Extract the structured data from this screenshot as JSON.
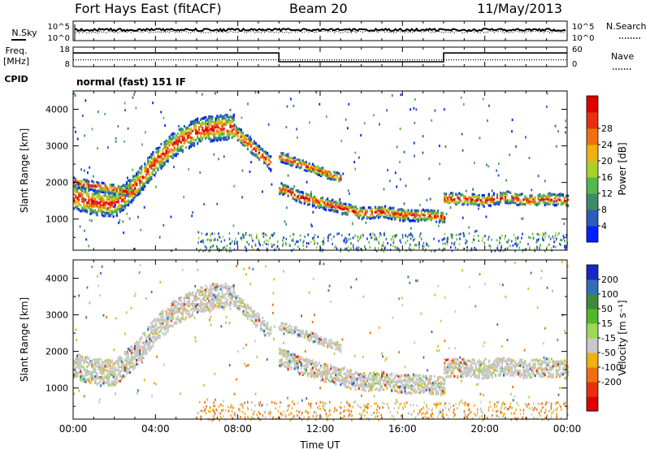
{
  "header": {
    "station": "Fort Hays East (fitACF)",
    "beam": "Beam 20",
    "date": "11/May/2013"
  },
  "left_labels": {
    "nsky": "N.Sky",
    "freq": "Freq.",
    "freq_unit": "[MHz]",
    "cpid": "CPID"
  },
  "right_labels": {
    "nsearch": "N.Search",
    "nave": "Nave"
  },
  "mode": "normal (fast) 151 IF",
  "chart_data": [
    {
      "id": "noise",
      "type": "line",
      "left_ticks": [
        "10^5",
        "10^0"
      ],
      "right_ticks": [
        "10^5",
        "10^0"
      ],
      "series": [
        {
          "name": "N.Sky",
          "style": "solid",
          "level": 0.55
        },
        {
          "name": "N.Search",
          "style": "dotted",
          "level": 0.45
        }
      ]
    },
    {
      "id": "freq",
      "type": "line",
      "left_ticks": [
        "18",
        "8"
      ],
      "right_ticks": [
        "60",
        "0"
      ],
      "ylim_left": [
        8,
        18
      ],
      "ylim_right": [
        0,
        60
      ],
      "series": [
        {
          "name": "Freq.",
          "style": "solid",
          "x": [
            0,
            10,
            10,
            18,
            18,
            24
          ],
          "y": [
            15,
            15,
            10.5,
            10.5,
            15,
            15
          ]
        },
        {
          "name": "Nave",
          "style": "dotted",
          "x": [
            0,
            24
          ],
          "y": [
            21,
            21
          ]
        }
      ]
    },
    {
      "id": "power",
      "type": "heatmap",
      "ylabel": "Slant Range [km]",
      "yticks": [
        "1000",
        "2000",
        "3000",
        "4000"
      ],
      "ylim": [
        150,
        4500
      ],
      "xlim": [
        0,
        24
      ],
      "colorbar": {
        "label": "Power [dB]",
        "ticks": [
          "4",
          "8",
          "12",
          "16",
          "20",
          "24",
          "28"
        ],
        "colors": [
          "#0020ff",
          "#2e5bb8",
          "#3f8a6a",
          "#52b84a",
          "#a8d02a",
          "#f0b010",
          "#f07010",
          "#e83010",
          "#e00000"
        ]
      },
      "bands": [
        {
          "x": [
            0,
            1,
            2,
            3,
            4,
            5,
            6,
            7,
            7.8
          ],
          "center": [
            1600,
            1450,
            1400,
            1900,
            2600,
            3100,
            3400,
            3500,
            3500
          ],
          "width": 700
        },
        {
          "x": [
            7.8,
            8.4,
            9,
            9.6
          ],
          "center": [
            3400,
            3100,
            2800,
            2500
          ],
          "width": 400
        },
        {
          "x": [
            10,
            11,
            12,
            13,
            14,
            15,
            16,
            17,
            18
          ],
          "center": [
            1850,
            1600,
            1450,
            1300,
            1150,
            1200,
            1100,
            1100,
            1050
          ],
          "width": 320
        },
        {
          "x": [
            18,
            19,
            20,
            21,
            22,
            23,
            24
          ],
          "center": [
            1550,
            1550,
            1500,
            1600,
            1500,
            1550,
            1500
          ],
          "width": 320
        },
        {
          "x": [
            10,
            11,
            12,
            13
          ],
          "center": [
            2700,
            2500,
            2300,
            2100
          ],
          "width": 250
        },
        {
          "x": [
            0,
            1,
            2,
            3
          ],
          "center": [
            2000,
            1900,
            1800,
            1700
          ],
          "width": 250
        }
      ]
    },
    {
      "id": "velocity",
      "type": "heatmap",
      "ylabel": "Slant Range [km]",
      "yticks": [
        "1000",
        "2000",
        "3000",
        "4000"
      ],
      "ylim": [
        150,
        4500
      ],
      "xlim": [
        0,
        24
      ],
      "colorbar": {
        "label": "Velocity [m s⁻¹]",
        "ticks": [
          "200",
          "100",
          "50",
          "15",
          "-15",
          "-50",
          "-100",
          "-200"
        ],
        "colors": [
          "#1828c8",
          "#2e6fb8",
          "#3f8a3a",
          "#52b82a",
          "#9ed854",
          "#c8c8c8",
          "#f0b010",
          "#f07010",
          "#e83010",
          "#e00000"
        ]
      },
      "bands": [
        {
          "x": [
            0,
            1,
            2,
            3,
            4,
            5,
            6,
            7,
            7.8
          ],
          "center": [
            1600,
            1450,
            1400,
            1900,
            2600,
            3100,
            3400,
            3500,
            3500
          ],
          "width": 700
        },
        {
          "x": [
            7.8,
            8.4,
            9,
            9.6
          ],
          "center": [
            3400,
            3100,
            2800,
            2500
          ],
          "width": 400
        },
        {
          "x": [
            10,
            11,
            12,
            13,
            14,
            15,
            16,
            17,
            18
          ],
          "center": [
            1850,
            1600,
            1450,
            1300,
            1150,
            1200,
            1100,
            1100,
            1050
          ],
          "width": 500
        },
        {
          "x": [
            18,
            19,
            20,
            21,
            22,
            23,
            24
          ],
          "center": [
            1550,
            1550,
            1500,
            1600,
            1500,
            1550,
            1500
          ],
          "width": 500
        },
        {
          "x": [
            10,
            11,
            12,
            13
          ],
          "center": [
            2700,
            2500,
            2300,
            2100
          ],
          "width": 250
        }
      ]
    }
  ],
  "xaxis": {
    "ticks": [
      "00:00",
      "04:00",
      "08:00",
      "12:00",
      "16:00",
      "20:00",
      "00:00"
    ],
    "label": "Time UT"
  }
}
